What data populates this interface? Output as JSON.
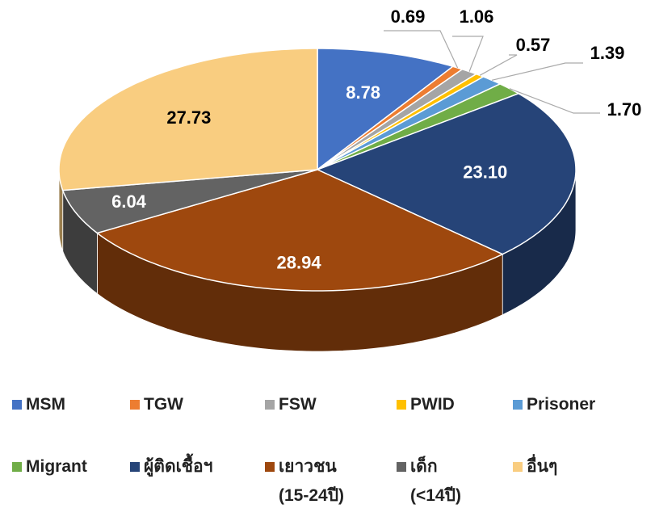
{
  "chart_data": {
    "type": "pie3d",
    "categories": [
      "MSM",
      "TGW",
      "FSW",
      "PWID",
      "Prisoner",
      "Migrant",
      "ผู้ติดเชื้อฯ",
      "เยาวชน\n(15-24ปี)",
      "เด็ก\n(<14ปี)",
      "อื่นๆ"
    ],
    "values": [
      8.78,
      0.69,
      1.06,
      0.57,
      1.39,
      1.7,
      23.1,
      28.94,
      6.04,
      27.73
    ],
    "value_labels": [
      "8.78",
      "0.69",
      "1.06",
      "0.57",
      "1.39",
      "1.70",
      "23.10",
      "28.94",
      "6.04",
      "27.73"
    ],
    "colors": [
      "#4472c4",
      "#ed7d31",
      "#a5a5a5",
      "#ffc000",
      "#5b9bd5",
      "#70ad47",
      "#264478",
      "#9e480e",
      "#636363",
      "#f9cd80"
    ],
    "legend": "bottom"
  }
}
